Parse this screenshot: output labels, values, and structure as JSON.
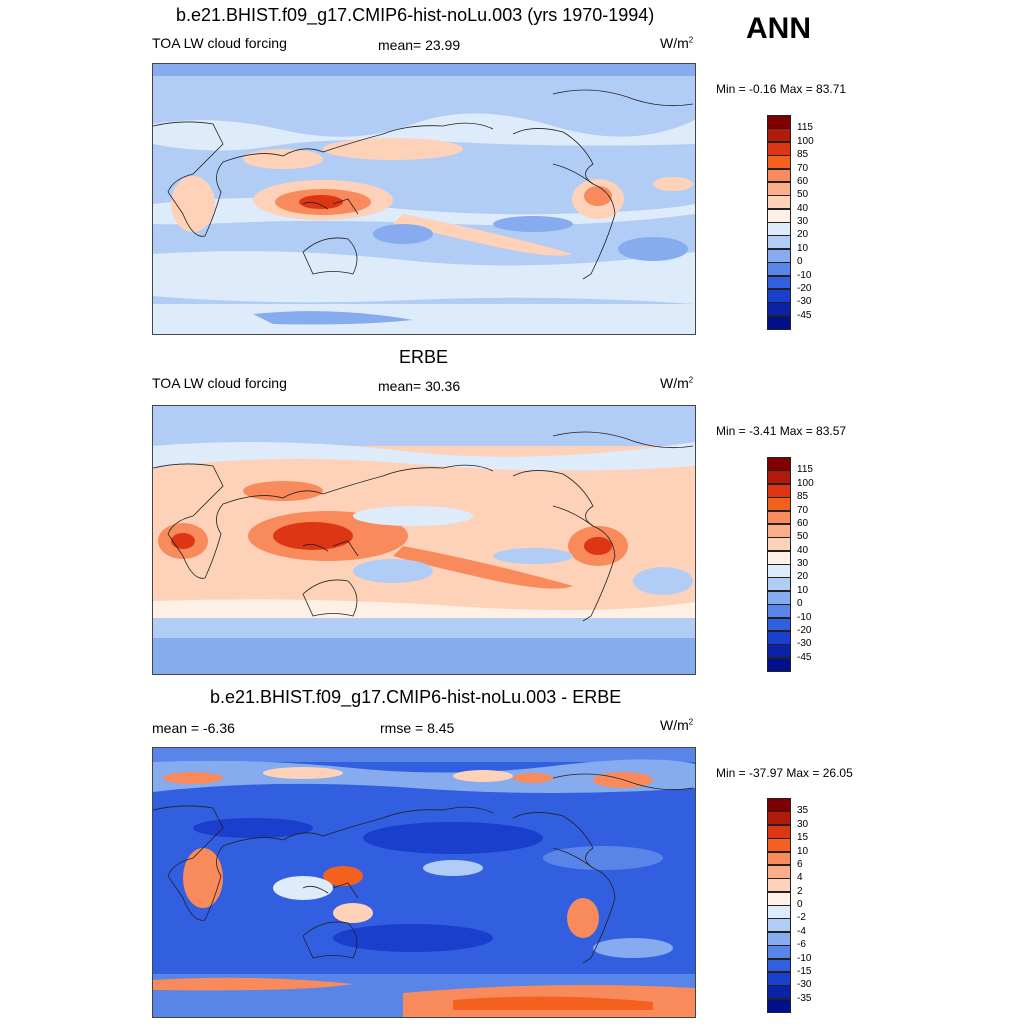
{
  "season": "ANN",
  "units_base": "W/m",
  "units_exp": "2",
  "panels": [
    {
      "title": "b.e21.BHIST.f09_g17.CMIP6-hist-noLu.003 (yrs 1970-1994)",
      "left_label": "TOA LW cloud forcing",
      "center_label": "mean=  23.99",
      "minmax": "Min =  -0.16 Max =  83.71",
      "scale": "abs"
    },
    {
      "title": "ERBE",
      "left_label": "TOA LW cloud forcing",
      "center_label": "mean=  30.36",
      "minmax": "Min =  -3.41 Max =  83.57",
      "scale": "abs"
    },
    {
      "title": "b.e21.BHIST.f09_g17.CMIP6-hist-noLu.003 - ERBE",
      "left_label": "mean =  -6.36",
      "center_label": "rmse =   8.45",
      "minmax": "Min = -37.97 Max =  26.05",
      "scale": "diff"
    }
  ],
  "colorbars": {
    "abs": {
      "levels": [
        "115",
        "100",
        "85",
        "70",
        "60",
        "50",
        "40",
        "30",
        "20",
        "10",
        "0",
        "-10",
        "-20",
        "-30",
        "-45"
      ],
      "colors": [
        "#7f0000",
        "#b21a0a",
        "#de3514",
        "#f4601e",
        "#f98a5c",
        "#fcae8c",
        "#fdd2b8",
        "#fff0e6",
        "#deebfa",
        "#b2cdf5",
        "#86abef",
        "#5a85e8",
        "#325ee0",
        "#1a3fcc",
        "#0a22a8",
        "#00108a"
      ]
    },
    "diff": {
      "levels": [
        "35",
        "30",
        "15",
        "10",
        "6",
        "4",
        "2",
        "0",
        "-2",
        "-4",
        "-6",
        "-10",
        "-15",
        "-30",
        "-35"
      ],
      "colors": [
        "#7f0000",
        "#b21a0a",
        "#de3514",
        "#f4601e",
        "#f98a5c",
        "#fcae8c",
        "#fdd2b8",
        "#fff0e6",
        "#deebfa",
        "#b2cdf5",
        "#86abef",
        "#5a85e8",
        "#325ee0",
        "#1a3fcc",
        "#0a22a8",
        "#00108a"
      ]
    }
  }
}
